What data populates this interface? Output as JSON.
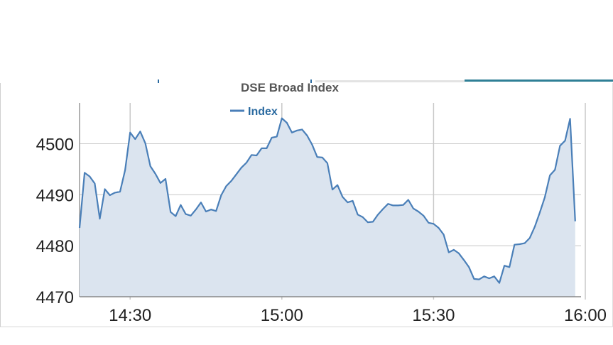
{
  "chart_data": {
    "type": "area",
    "title": "DSE Broad Index",
    "legend": [
      "Index"
    ],
    "legend_position": "top-center",
    "grid": true,
    "colors": {
      "line": "#4a7fb8",
      "fill": "#dbe4ef",
      "grid": "#c8c8c8",
      "title": "#555555",
      "legend_text": "#2a6aa0"
    },
    "x_ticks": [
      "14:30",
      "15:00",
      "15:30",
      "16:00"
    ],
    "y_ticks": [
      4470,
      4480,
      4490,
      4500
    ],
    "ylim": [
      4470,
      4508
    ],
    "series": [
      {
        "name": "Index",
        "points": [
          [
            "14:20",
            4483.5
          ],
          [
            "14:21",
            4494.3
          ],
          [
            "14:22",
            4493.6
          ],
          [
            "14:23",
            4492.2
          ],
          [
            "14:24",
            4485.3
          ],
          [
            "14:25",
            4491.1
          ],
          [
            "14:26",
            4489.9
          ],
          [
            "14:27",
            4490.4
          ],
          [
            "14:28",
            4490.6
          ],
          [
            "14:29",
            4494.8
          ],
          [
            "14:30",
            4502.2
          ],
          [
            "14:31",
            4500.9
          ],
          [
            "14:32",
            4502.4
          ],
          [
            "14:33",
            4500.1
          ],
          [
            "14:34",
            4495.6
          ],
          [
            "14:35",
            4494.1
          ],
          [
            "14:36",
            4492.3
          ],
          [
            "14:37",
            4493.1
          ],
          [
            "14:38",
            4486.6
          ],
          [
            "14:39",
            4485.8
          ],
          [
            "14:40",
            4488.0
          ],
          [
            "14:41",
            4486.2
          ],
          [
            "14:42",
            4485.9
          ],
          [
            "14:43",
            4487.1
          ],
          [
            "14:44",
            4488.5
          ],
          [
            "14:45",
            4486.7
          ],
          [
            "14:46",
            4487.1
          ],
          [
            "14:47",
            4486.8
          ],
          [
            "14:48",
            4489.9
          ],
          [
            "14:49",
            4491.7
          ],
          [
            "14:50",
            4492.7
          ],
          [
            "14:51",
            4494.0
          ],
          [
            "14:52",
            4495.3
          ],
          [
            "14:53",
            4496.3
          ],
          [
            "14:54",
            4497.8
          ],
          [
            "14:55",
            4497.7
          ],
          [
            "14:56",
            4499.1
          ],
          [
            "14:57",
            4499.1
          ],
          [
            "14:58",
            4501.2
          ],
          [
            "14:59",
            4501.4
          ],
          [
            "15:00",
            4505.0
          ],
          [
            "15:01",
            4504.1
          ],
          [
            "15:02",
            4502.2
          ],
          [
            "15:03",
            4502.6
          ],
          [
            "15:04",
            4502.8
          ],
          [
            "15:05",
            4501.6
          ],
          [
            "15:06",
            4499.8
          ],
          [
            "15:07",
            4497.4
          ],
          [
            "15:08",
            4497.3
          ],
          [
            "15:09",
            4496.2
          ],
          [
            "15:10",
            4491.0
          ],
          [
            "15:11",
            4491.9
          ],
          [
            "15:12",
            4489.6
          ],
          [
            "15:13",
            4488.5
          ],
          [
            "15:14",
            4488.8
          ],
          [
            "15:15",
            4486.1
          ],
          [
            "15:16",
            4485.6
          ],
          [
            "15:17",
            4484.6
          ],
          [
            "15:18",
            4484.7
          ],
          [
            "15:19",
            4486.1
          ],
          [
            "15:20",
            4487.2
          ],
          [
            "15:21",
            4488.2
          ],
          [
            "15:22",
            4487.9
          ],
          [
            "15:23",
            4487.9
          ],
          [
            "15:24",
            4488.0
          ],
          [
            "15:25",
            4489.0
          ],
          [
            "15:26",
            4487.3
          ],
          [
            "15:27",
            4486.7
          ],
          [
            "15:28",
            4485.9
          ],
          [
            "15:29",
            4484.5
          ],
          [
            "15:30",
            4484.3
          ],
          [
            "15:31",
            4483.5
          ],
          [
            "15:32",
            4482.2
          ],
          [
            "15:33",
            4478.7
          ],
          [
            "15:34",
            4479.2
          ],
          [
            "15:35",
            4478.5
          ],
          [
            "15:36",
            4477.2
          ],
          [
            "15:37",
            4475.8
          ],
          [
            "15:38",
            4473.5
          ],
          [
            "15:39",
            4473.4
          ],
          [
            "15:40",
            4474.0
          ],
          [
            "15:41",
            4473.6
          ],
          [
            "15:42",
            4474.0
          ],
          [
            "15:43",
            4472.7
          ],
          [
            "15:44",
            4476.1
          ],
          [
            "15:45",
            4475.8
          ],
          [
            "15:46",
            4480.2
          ],
          [
            "15:47",
            4480.3
          ],
          [
            "15:48",
            4480.5
          ],
          [
            "15:49",
            4481.5
          ],
          [
            "15:50",
            4483.7
          ],
          [
            "15:51",
            4486.5
          ],
          [
            "15:52",
            4489.5
          ],
          [
            "15:53",
            4493.8
          ],
          [
            "15:54",
            4494.9
          ],
          [
            "15:55",
            4499.6
          ],
          [
            "15:56",
            4500.6
          ],
          [
            "15:57",
            4504.9
          ],
          [
            "15:58",
            4484.8
          ]
        ]
      }
    ]
  }
}
